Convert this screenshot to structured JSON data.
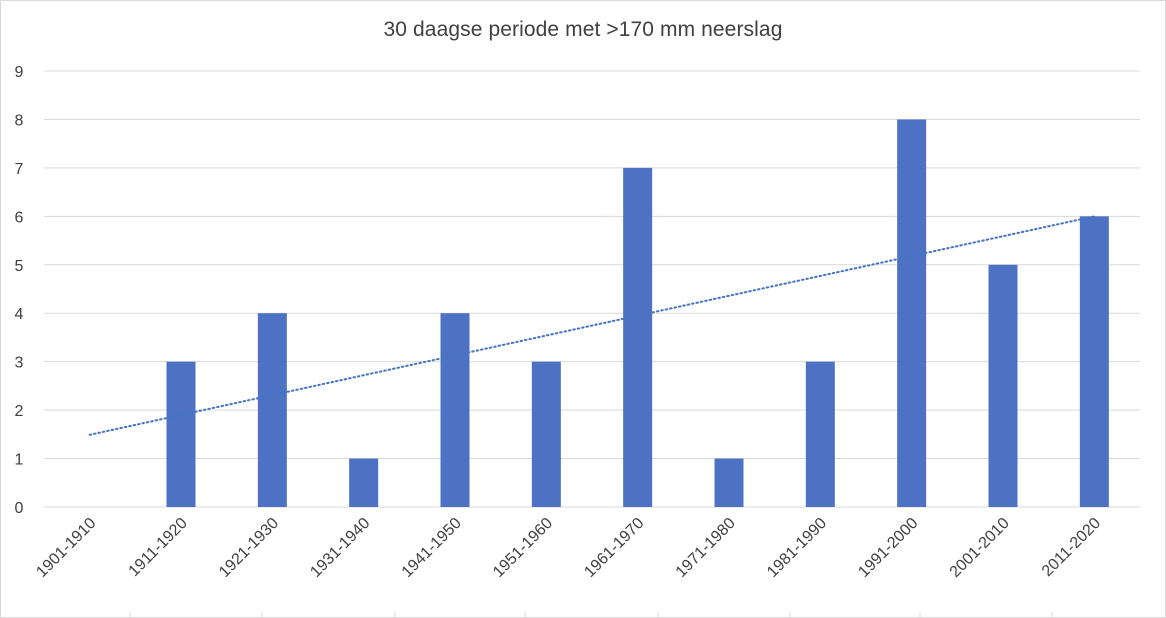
{
  "chart_data": {
    "type": "bar",
    "title": "30 daagse periode met >170 mm neerslag",
    "xlabel": "",
    "ylabel": "",
    "categories": [
      "1901-1910",
      "1911-1920",
      "1921-1930",
      "1931-1940",
      "1941-1950",
      "1951-1960",
      "1961-1970",
      "1971-1980",
      "1981-1990",
      "1991-2000",
      "2001-2010",
      "2011-2020"
    ],
    "values": [
      0,
      3,
      4,
      1,
      4,
      3,
      7,
      1,
      3,
      8,
      5,
      6
    ],
    "ylim": [
      0,
      9
    ],
    "yticks": [
      0,
      1,
      2,
      3,
      4,
      5,
      6,
      7,
      8,
      9
    ],
    "grid": true,
    "legend": "none",
    "trendline": {
      "type": "linear",
      "style": "dotted",
      "start": 1.49,
      "end": 6.0
    },
    "colors": {
      "bar": "#4e72c3",
      "trendline": "#4472c4",
      "grid": "#d9d9d9",
      "text": "#404040"
    }
  }
}
